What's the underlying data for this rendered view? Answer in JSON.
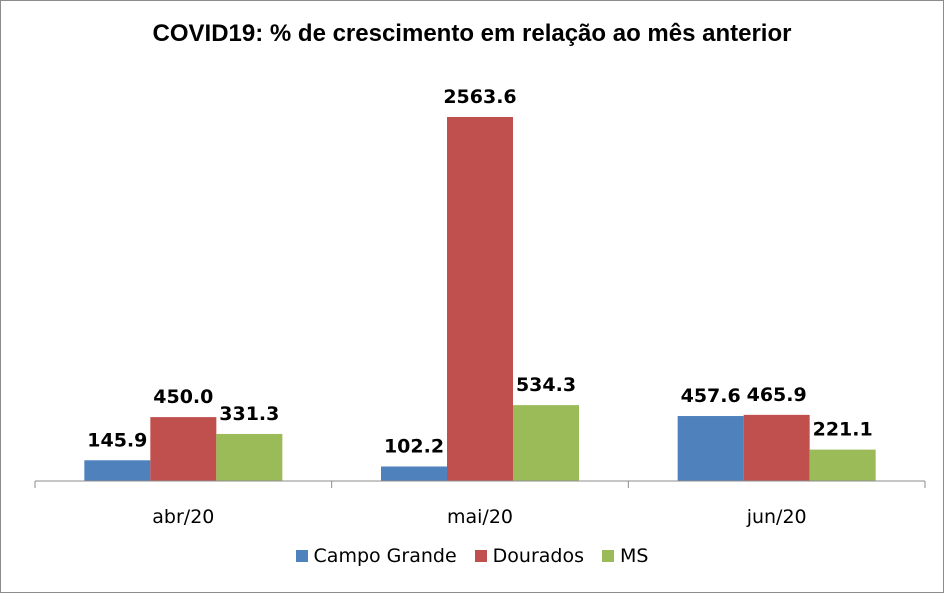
{
  "chart_data": {
    "type": "bar",
    "title": "COVID19: % de crescimento em relação ao mês anterior",
    "categories": [
      "abr/20",
      "mai/20",
      "jun/20"
    ],
    "series": [
      {
        "name": "Campo Grande",
        "color": "#4F81BD",
        "values": [
          145.9,
          102.2,
          457.6
        ]
      },
      {
        "name": "Dourados",
        "color": "#C0504D",
        "values": [
          450.0,
          2563.6,
          465.9
        ]
      },
      {
        "name": "MS",
        "color": "#9BBB59",
        "values": [
          331.3,
          534.3,
          221.1
        ]
      }
    ],
    "data_labels": [
      [
        "145.9",
        "102.2",
        "457.6"
      ],
      [
        "450.0",
        "2563.6",
        "465.9"
      ],
      [
        "331.3",
        "534.3",
        "221.1"
      ]
    ],
    "ylim": [
      0,
      2563.6
    ],
    "grid": false,
    "legend": "bottom"
  }
}
